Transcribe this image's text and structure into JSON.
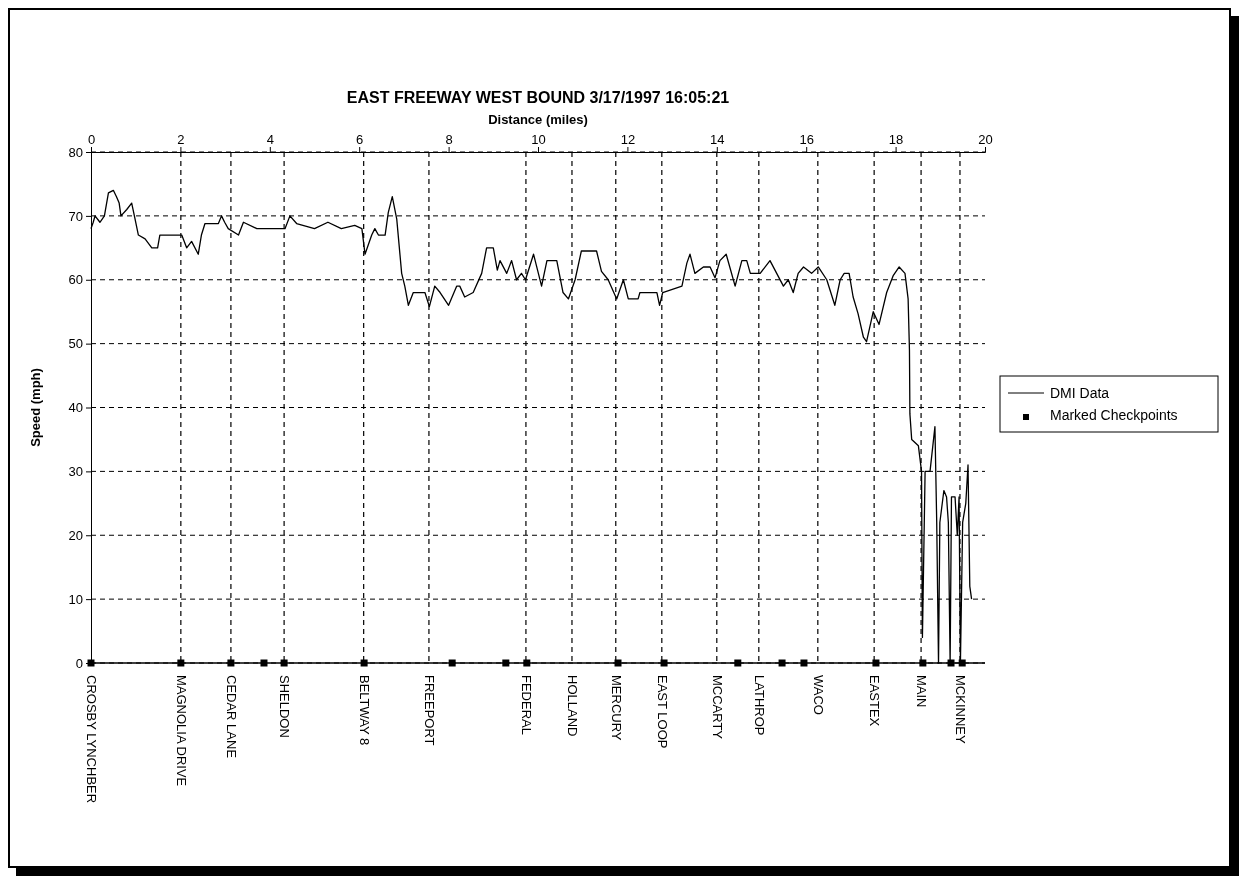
{
  "chart_data": {
    "type": "line",
    "title": "EAST FREEWAY WEST BOUND 3/17/1997 16:05:21",
    "xlabel": "Distance (miles)",
    "ylabel": "Speed (mph)",
    "xlim": [
      0,
      20
    ],
    "xticks": [
      0,
      2,
      4,
      6,
      8,
      10,
      12,
      14,
      16,
      18,
      20
    ],
    "ylim": [
      0,
      80
    ],
    "yticks": [
      0,
      10,
      20,
      30,
      40,
      50,
      60,
      70,
      80
    ],
    "grid": "y",
    "legend": "right",
    "series": [
      {
        "name": "DMI Data",
        "color": "#000000",
        "marker": "none",
        "x": [
          0,
          0.05,
          0.09,
          0.2,
          0.3,
          0.39,
          0.5,
          0.57,
          0.63,
          0.67,
          0.8,
          0.91,
          0.98,
          1.06,
          1.21,
          1.36,
          1.49,
          1.54,
          2.03,
          2.14,
          2.25,
          2.4,
          2.47,
          2.55,
          2.85,
          2.92,
          2.99,
          3.07,
          3.3,
          3.41,
          3.71,
          4.34,
          4.45,
          4.6,
          5.0,
          5.3,
          5.6,
          5.9,
          6.06,
          6.13,
          6.28,
          6.35,
          6.43,
          6.58,
          6.65,
          6.74,
          6.84,
          6.95,
          7.02,
          7.1,
          7.21,
          7.47,
          7.57,
          7.69,
          7.81,
          8.0,
          8.18,
          8.25,
          8.36,
          8.55,
          8.74,
          8.85,
          9.0,
          9.09,
          9.15,
          9.3,
          9.41,
          9.52,
          9.63,
          9.72,
          9.9,
          10.08,
          10.2,
          10.42,
          10.56,
          10.68,
          10.83,
          10.97,
          11.31,
          11.42,
          11.57,
          11.76,
          11.91,
          12.02,
          12.24,
          12.28,
          12.66,
          12.72,
          12.79,
          13.22,
          13.33,
          13.4,
          13.51,
          13.7,
          13.85,
          13.96,
          14.07,
          14.21,
          14.29,
          14.41,
          14.56,
          14.67,
          14.75,
          14.97,
          15.19,
          15.34,
          15.49,
          15.6,
          15.71,
          15.82,
          15.94,
          16.12,
          16.27,
          16.46,
          16.64,
          16.76,
          16.85,
          16.96,
          17.05,
          17.16,
          17.28,
          17.35,
          17.5,
          17.63,
          17.8,
          17.95,
          18.08,
          18.21,
          18.28,
          18.31,
          18.32,
          18.36,
          18.51,
          18.58,
          18.6,
          18.66,
          18.77,
          18.88,
          18.92,
          18.96,
          18.99,
          19.08,
          19.14,
          19.18,
          19.22,
          19.25,
          19.33,
          19.38,
          19.42,
          19.45,
          19.5,
          19.57,
          19.62,
          19.66,
          19.7
        ],
        "values": [
          68,
          69,
          70,
          69,
          70,
          73.6,
          74,
          73,
          72,
          70,
          71,
          72,
          69.7,
          67,
          66.4,
          65,
          65,
          67,
          67,
          65,
          66,
          64,
          67,
          68.8,
          68.8,
          70,
          69,
          68,
          67,
          69,
          68,
          68,
          70,
          68.8,
          68,
          69,
          68,
          68.5,
          68,
          64,
          67,
          68,
          67,
          67,
          70.5,
          73,
          69.5,
          61,
          59,
          56,
          58,
          58,
          55.8,
          59,
          58,
          56,
          59,
          59,
          57.3,
          58,
          61,
          65,
          65,
          61.5,
          63,
          61,
          63,
          60,
          61,
          60,
          64,
          59,
          63,
          63,
          58,
          57,
          60,
          64.5,
          64.5,
          61.3,
          60,
          57,
          60,
          57,
          57,
          58,
          58,
          56,
          58,
          59,
          62.6,
          64,
          61,
          62,
          62,
          60.3,
          63,
          64,
          62,
          59,
          63,
          63,
          61,
          61,
          63,
          61,
          59,
          60,
          58,
          61,
          62,
          61,
          62,
          60,
          56,
          60,
          61,
          61,
          57.3,
          54.7,
          51,
          50.3,
          55,
          53,
          58,
          60.7,
          62,
          61,
          57,
          49,
          39,
          35,
          34,
          30,
          4,
          30,
          30,
          37,
          22,
          0,
          22,
          27,
          26,
          22,
          0,
          26,
          26,
          20,
          26,
          0,
          22,
          25,
          31,
          12,
          10
        ]
      },
      {
        "name": "Marked Checkpoints",
        "type": "scatter",
        "color": "#000000",
        "marker": "square",
        "x": [
          0,
          2.01,
          3.13,
          3.87,
          4.32,
          6.11,
          8.08,
          9.28,
          9.75,
          11.79,
          12.82,
          14.47,
          15.46,
          15.95,
          17.56,
          18.61,
          19.24,
          19.49
        ],
        "values": [
          0,
          0,
          0,
          0,
          0,
          0,
          0,
          0,
          0,
          0,
          0,
          0,
          0,
          0,
          0,
          0,
          0,
          0
        ]
      }
    ],
    "annotations": [
      {
        "text": "CROSBY LYNCHBER",
        "x": 0,
        "y": 0
      }
    ],
    "ref_lines": [
      {
        "axis": "x",
        "value": 2.01,
        "label": "MAGNOLIA DRIVE",
        "line_style": "dashed"
      },
      {
        "axis": "x",
        "value": 3.13,
        "label": "CEDAR LANE",
        "line_style": "dashed"
      },
      {
        "axis": "x",
        "value": 4.32,
        "label": "SHELDON",
        "line_style": "dashed"
      },
      {
        "axis": "x",
        "value": 6.1,
        "label": "BELTWAY 8",
        "line_style": "dashed"
      },
      {
        "axis": "x",
        "value": 7.56,
        "label": "FREEPORT",
        "line_style": "dashed"
      },
      {
        "axis": "x",
        "value": 9.73,
        "label": "FEDERAL",
        "line_style": "dashed"
      },
      {
        "axis": "x",
        "value": 10.76,
        "label": "HOLLAND",
        "line_style": "dashed"
      },
      {
        "axis": "x",
        "value": 11.74,
        "label": "MERCURY",
        "line_style": "dashed"
      },
      {
        "axis": "x",
        "value": 12.77,
        "label": "EAST LOOP",
        "line_style": "dashed"
      },
      {
        "axis": "x",
        "value": 14.0,
        "label": "MCCARTY",
        "line_style": "dashed"
      },
      {
        "axis": "x",
        "value": 14.94,
        "label": "LATHROP",
        "line_style": "dashed"
      },
      {
        "axis": "x",
        "value": 16.26,
        "label": "WACO",
        "line_style": "dashed"
      },
      {
        "axis": "x",
        "value": 17.52,
        "label": "EASTEX",
        "line_style": "dashed"
      },
      {
        "axis": "x",
        "value": 18.57,
        "label": "MAIN",
        "line_style": "dashed"
      },
      {
        "axis": "x",
        "value": 19.44,
        "label": "MCKINNEY",
        "line_style": "dashed"
      }
    ]
  }
}
